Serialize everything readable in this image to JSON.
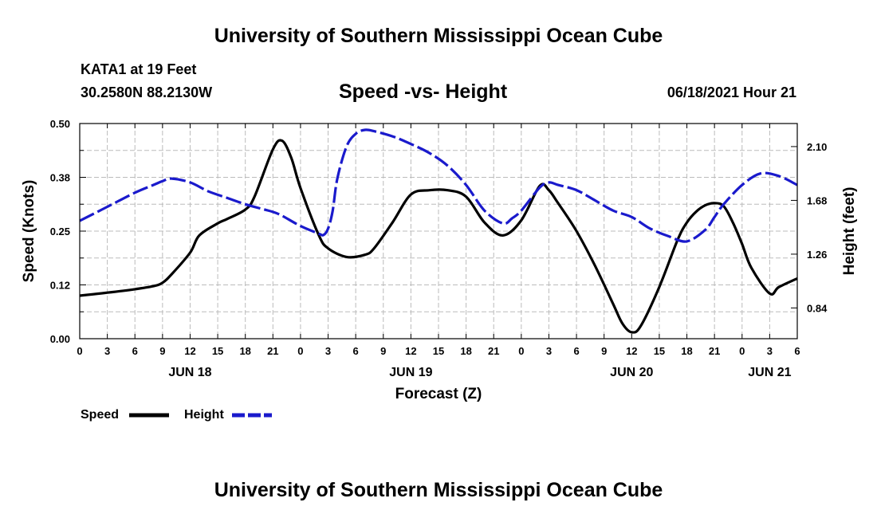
{
  "header": {
    "title": "University of Southern Mississippi Ocean Cube",
    "station": "KATA1 at 19 Feet",
    "coords": "30.2580N  88.2130W",
    "chart_title": "Speed -vs- Height",
    "datetime": "06/18/2021 Hour 21"
  },
  "footer": {
    "title": "University of Southern Mississippi Ocean Cube"
  },
  "colors": {
    "speed": "#000000",
    "height": "#1a1acc",
    "grid": "#bbbbbb"
  },
  "chart_data": {
    "type": "line",
    "title": "Speed -vs- Height",
    "xlabel": "Forecast (Z)",
    "ylabel": "Speed (Knots)",
    "y2label": "Height (feet)",
    "xlim": [
      0,
      78
    ],
    "ylim": [
      0,
      0.5
    ],
    "y2lim": [
      0.6,
      2.28
    ],
    "y_ticks": [
      "0.00",
      "0.12",
      "0.25",
      "0.38",
      "0.50"
    ],
    "y_tick_values": [
      0,
      0.125,
      0.25,
      0.375,
      0.5
    ],
    "y2_ticks": [
      "0.84",
      "1.26",
      "1.68",
      "2.10"
    ],
    "y2_tick_values": [
      0.84,
      1.26,
      1.68,
      2.1
    ],
    "x_ticks": [
      "0",
      "3",
      "6",
      "9",
      "12",
      "15",
      "18",
      "21",
      "0",
      "3",
      "6",
      "9",
      "12",
      "15",
      "18",
      "21",
      "0",
      "3",
      "6",
      "9",
      "12",
      "15",
      "18",
      "21",
      "0",
      "3",
      "6"
    ],
    "days": [
      {
        "label": "JUN 18",
        "x": 12
      },
      {
        "label": "JUN 19",
        "x": 36
      },
      {
        "label": "JUN 20",
        "x": 60
      },
      {
        "label": "JUN 21",
        "x": 75
      }
    ],
    "legend": [
      "Speed",
      "Height"
    ],
    "series": [
      {
        "name": "Speed",
        "axis": "left",
        "style": "solid",
        "x": [
          0,
          3,
          6,
          8,
          9,
          10,
          12,
          13,
          15,
          16,
          18,
          19,
          21,
          22,
          23,
          24,
          26,
          27,
          29,
          31,
          32,
          34,
          36,
          38,
          40,
          42,
          44,
          46,
          48,
          50,
          51,
          52,
          54,
          56,
          58,
          59,
          60,
          61,
          63,
          65,
          66,
          67,
          68,
          69,
          70,
          71,
          72,
          73,
          75,
          76,
          78
        ],
        "values": [
          0.1,
          0.107,
          0.115,
          0.122,
          0.13,
          0.15,
          0.2,
          0.24,
          0.268,
          0.278,
          0.3,
          0.33,
          0.44,
          0.46,
          0.42,
          0.35,
          0.24,
          0.21,
          0.19,
          0.195,
          0.21,
          0.27,
          0.335,
          0.345,
          0.345,
          0.33,
          0.27,
          0.24,
          0.275,
          0.355,
          0.345,
          0.315,
          0.25,
          0.17,
          0.08,
          0.035,
          0.015,
          0.03,
          0.12,
          0.23,
          0.27,
          0.295,
          0.31,
          0.315,
          0.308,
          0.27,
          0.22,
          0.165,
          0.105,
          0.12,
          0.14
        ]
      },
      {
        "name": "Height",
        "axis": "right",
        "style": "dashed",
        "x": [
          0,
          3,
          6,
          8,
          9,
          10,
          12,
          14,
          16,
          18,
          20,
          21,
          22,
          24,
          26,
          26.5,
          27,
          27.5,
          28,
          29,
          30,
          31,
          32,
          34,
          36,
          38,
          40,
          42,
          44,
          46,
          47,
          48,
          50,
          51,
          52,
          54,
          56,
          58,
          60,
          62,
          64,
          66,
          68,
          69,
          70,
          72,
          74,
          76,
          78
        ],
        "values": [
          1.52,
          1.63,
          1.74,
          1.8,
          1.83,
          1.85,
          1.82,
          1.75,
          1.7,
          1.65,
          1.61,
          1.59,
          1.56,
          1.48,
          1.42,
          1.41,
          1.46,
          1.6,
          1.85,
          2.1,
          2.2,
          2.23,
          2.22,
          2.18,
          2.12,
          2.05,
          1.95,
          1.8,
          1.6,
          1.5,
          1.54,
          1.6,
          1.78,
          1.82,
          1.8,
          1.76,
          1.68,
          1.6,
          1.55,
          1.46,
          1.4,
          1.36,
          1.45,
          1.55,
          1.65,
          1.8,
          1.89,
          1.87,
          1.8
        ]
      }
    ]
  }
}
